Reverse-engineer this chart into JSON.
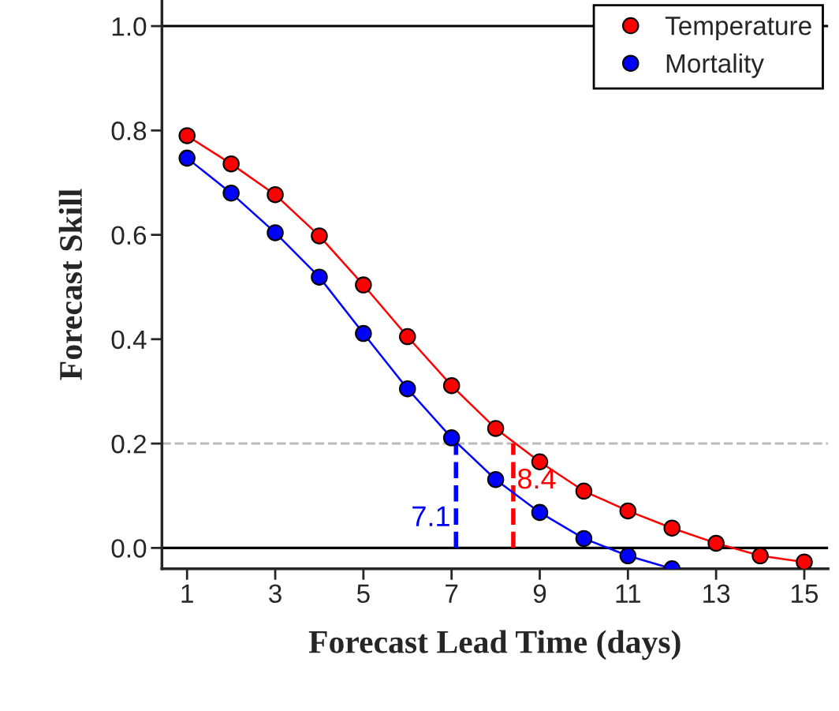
{
  "chart_data": {
    "type": "line",
    "xlabel": "Forecast Lead Time (days)",
    "ylabel": "Forecast Skill",
    "x": [
      1,
      2,
      3,
      4,
      5,
      6,
      7,
      8,
      9,
      10,
      11,
      12,
      13,
      14,
      15
    ],
    "series": [
      {
        "name": "Temperature",
        "color": "#ff0000",
        "values": [
          0.79,
          0.736,
          0.677,
          0.598,
          0.504,
          0.405,
          0.311,
          0.229,
          0.165,
          0.109,
          0.071,
          0.038,
          0.009,
          -0.015,
          -0.027
        ]
      },
      {
        "name": "Mortality",
        "color": "#0000ff",
        "values": [
          0.747,
          0.68,
          0.604,
          0.519,
          0.411,
          0.305,
          0.211,
          0.131,
          0.068,
          0.018,
          -0.015,
          -0.04,
          null,
          null,
          null
        ]
      }
    ],
    "annotations": [
      {
        "text": "8.4",
        "x": 8.4,
        "y": 0.2
      },
      {
        "text": "7.1",
        "x": 7.1,
        "y": 0.2
      }
    ],
    "ref_lines": [
      {
        "axis": "y",
        "value": 1.0,
        "color": "#000000",
        "line_style": "solid"
      },
      {
        "axis": "y",
        "value": 0.0,
        "color": "#000000",
        "line_style": "solid"
      },
      {
        "axis": "y",
        "value": 0.2,
        "color": "#bbbbbb",
        "line_style": "dashed"
      }
    ],
    "xlim": [
      0.43,
      15.54
    ],
    "ylim": [
      -0.04,
      1.05
    ],
    "xticks": [
      1,
      3,
      5,
      7,
      9,
      11,
      13,
      15
    ],
    "yticks": [
      {
        "value": 0,
        "label": "0.0"
      },
      {
        "value": 0.2,
        "label": "0.2"
      },
      {
        "value": 0.4,
        "label": "0.4"
      },
      {
        "value": 0.6,
        "label": "0.6"
      },
      {
        "value": 0.8,
        "label": "0.8"
      },
      {
        "value": 1.0,
        "label": "1.0"
      }
    ],
    "grid": false,
    "legend": "top right",
    "marker": "circle",
    "line_style": "solid"
  }
}
